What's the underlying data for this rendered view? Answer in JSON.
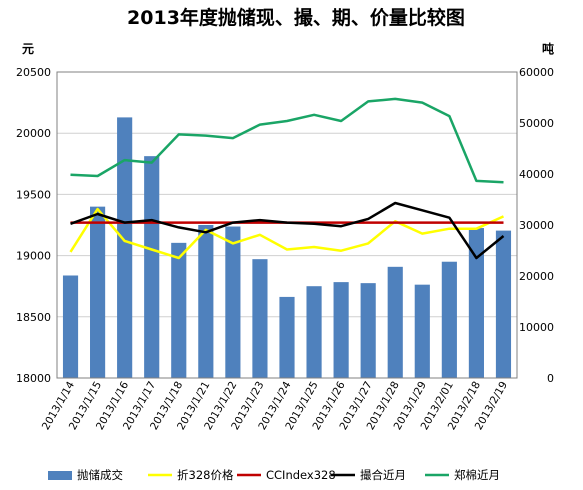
{
  "chart_data": {
    "type": "bar+line",
    "title": "2013年度抛储现、撮、期、价量比较图",
    "left_unit": "元",
    "right_unit": "吨",
    "left_axis": {
      "min": 18000,
      "max": 20500,
      "step": 500
    },
    "right_axis": {
      "min": 0,
      "max": 60000,
      "step": 10000
    },
    "categories": [
      "2013/1/14",
      "2013/1/15",
      "2013/1/16",
      "2013/1/17",
      "2013/1/18",
      "2013/1/21",
      "2013/1/22",
      "2013/1/23",
      "2013/1/24",
      "2013/1/25",
      "2013/1/26",
      "2013/1/27",
      "2013/1/28",
      "2013/1/29",
      "2013/2/01",
      "2013/2/18",
      "2013/2/19"
    ],
    "grid": true,
    "legend_position": "bottom",
    "bar_series": {
      "name": "抛储成交",
      "axis": "right",
      "color": "#4f81bd",
      "values": [
        20100,
        33600,
        51100,
        43500,
        26500,
        30000,
        29700,
        23300,
        15900,
        18000,
        18800,
        18600,
        21800,
        18300,
        22800,
        29400,
        28900
      ]
    },
    "line_series": [
      {
        "name": "折328价格",
        "axis": "left",
        "color": "#ffff00",
        "values": [
          19030,
          19380,
          19120,
          19050,
          18980,
          19210,
          19100,
          19170,
          19050,
          19070,
          19040,
          19100,
          19280,
          19180,
          19220,
          19220,
          19320
        ]
      },
      {
        "name": "CCIndex328",
        "axis": "left",
        "color": "#c00000",
        "values": [
          19270,
          19270,
          19270,
          19270,
          19270,
          19270,
          19270,
          19270,
          19270,
          19270,
          19270,
          19270,
          19270,
          19270,
          19270,
          19270,
          19270
        ]
      },
      {
        "name": "撮合近月",
        "axis": "left",
        "color": "#000000",
        "values": [
          19260,
          19340,
          19270,
          19290,
          19230,
          19190,
          19270,
          19290,
          19270,
          19260,
          19240,
          19300,
          19430,
          19370,
          19310,
          18980,
          19160
        ]
      },
      {
        "name": "郑棉近月",
        "axis": "left",
        "color": "#1aa566",
        "values": [
          19660,
          19650,
          19780,
          19760,
          19990,
          19980,
          19960,
          20070,
          20100,
          20150,
          20100,
          20260,
          20280,
          20250,
          20140,
          19610,
          19600
        ]
      }
    ]
  }
}
